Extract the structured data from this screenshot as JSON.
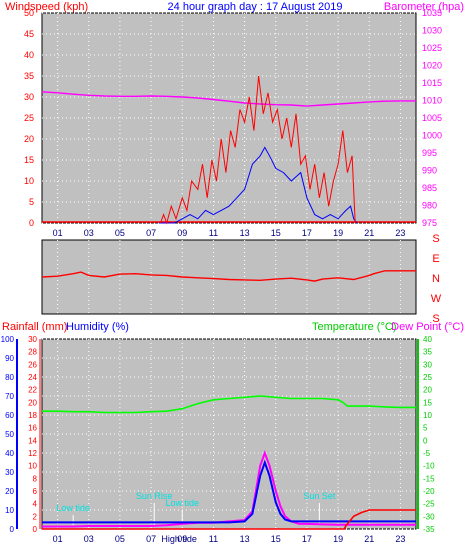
{
  "header": {
    "title": "24 hour graph day : 17 August 2019",
    "left_label": "Windspeed (kph)",
    "right_label": "Barometer (hpa)"
  },
  "colors": {
    "background_plot": "#c0c0c0",
    "wind": "#ff0000",
    "gust": "#0000ff",
    "barometer": "#ff00ff",
    "temperature": "#00ff00",
    "dewpoint": "#ff00ff",
    "humidity": "#0000ff",
    "rainfall": "#ff0000",
    "title": "#0000ff"
  },
  "chart_data": [
    {
      "type": "line",
      "name": "wind-barometer",
      "x_ticks": [
        "01",
        "03",
        "05",
        "07",
        "09",
        "11",
        "13",
        "15",
        "17",
        "19",
        "21",
        "23"
      ],
      "x_range": [
        0,
        24
      ],
      "y_left_range": [
        0,
        50
      ],
      "y_left_ticks": [
        "0",
        "5",
        "10",
        "15",
        "20",
        "25",
        "30",
        "35",
        "40",
        "45",
        "50"
      ],
      "y_right_range": [
        975,
        1035
      ],
      "y_right_ticks": [
        "975",
        "980",
        "985",
        "990",
        "995",
        "1000",
        "1005",
        "1010",
        "1015",
        "1020",
        "1025",
        "1030",
        "1035"
      ],
      "series": [
        {
          "key": "barometer",
          "x": [
            0,
            1,
            2,
            3,
            4,
            5,
            6,
            7,
            8,
            9,
            10,
            11,
            12,
            13,
            14,
            15,
            16,
            17,
            18,
            19,
            20,
            21,
            22,
            23,
            24
          ],
          "y": [
            1012.5,
            1012.2,
            1011.8,
            1011.5,
            1011.3,
            1011.2,
            1011.2,
            1011.3,
            1011.2,
            1011.0,
            1010.7,
            1010.3,
            1009.8,
            1009.3,
            1009.0,
            1008.8,
            1008.7,
            1008.4,
            1008.7,
            1009.0,
            1009.3,
            1009.6,
            1009.8,
            1009.9,
            1009.9
          ]
        },
        {
          "key": "gust",
          "x": [
            7.5,
            8.5,
            9.0,
            9.5,
            10.0,
            10.5,
            11.0,
            11.5,
            12.0,
            12.5,
            13.0,
            13.5,
            14.0,
            14.3,
            14.6,
            15.0,
            15.5,
            16.0,
            16.3,
            16.6,
            17.0,
            17.5,
            18.0,
            18.5,
            19.0,
            19.5,
            19.8,
            20.0,
            20.2
          ],
          "y": [
            0,
            0,
            1,
            2,
            1,
            3,
            2,
            3,
            4,
            6,
            8,
            14,
            16,
            18,
            16,
            13,
            12,
            10,
            11,
            12,
            6,
            2,
            1,
            2,
            1,
            3,
            4,
            1,
            0
          ]
        },
        {
          "key": "wind",
          "x": [
            7.6,
            7.8,
            8.0,
            8.3,
            8.6,
            9.0,
            9.3,
            9.6,
            10.0,
            10.3,
            10.6,
            10.9,
            11.2,
            11.5,
            11.8,
            12.1,
            12.4,
            12.7,
            13.0,
            13.3,
            13.6,
            13.9,
            14.2,
            14.5,
            14.8,
            15.1,
            15.4,
            15.7,
            16.0,
            16.3,
            16.6,
            16.9,
            17.2,
            17.5,
            17.8,
            18.1,
            18.4,
            18.7,
            19.0,
            19.3,
            19.6,
            19.9,
            20.1
          ],
          "y": [
            0,
            2,
            0,
            4,
            1,
            6,
            3,
            10,
            8,
            14,
            6,
            15,
            10,
            20,
            12,
            22,
            18,
            27,
            24,
            30,
            22,
            35,
            26,
            31,
            24,
            27,
            20,
            25,
            18,
            26,
            14,
            16,
            8,
            14,
            6,
            12,
            4,
            10,
            14,
            22,
            12,
            16,
            0
          ]
        }
      ]
    },
    {
      "type": "line",
      "name": "wind-direction",
      "y_labels": [
        "S",
        "E",
        "N",
        "W",
        "S"
      ],
      "series": [
        {
          "key": "direction",
          "x": [
            0,
            1,
            2,
            2.5,
            3,
            4,
            5,
            6,
            7,
            8,
            9,
            10,
            11,
            12,
            13,
            14,
            15,
            16,
            17,
            17.5,
            18,
            19,
            20,
            21,
            21.3,
            22,
            23,
            24
          ],
          "y": [
            270,
            268,
            262,
            258,
            266,
            270,
            263,
            262,
            265,
            266,
            270,
            272,
            274,
            276,
            277,
            278,
            275,
            273,
            277,
            280,
            275,
            272,
            276,
            266,
            262,
            255,
            255,
            255
          ]
        }
      ]
    },
    {
      "type": "line",
      "name": "temperature-humidity-rain",
      "labels": {
        "rainfall": "Rainfall (mm)",
        "humidity": "Humidity (%)",
        "temperature": "Temperature (°C)",
        "dewpoint": "Dew Point (°C)"
      },
      "x_ticks": [
        "01",
        "03",
        "05",
        "07",
        "09",
        "11",
        "13",
        "15",
        "17",
        "19",
        "21",
        "23"
      ],
      "rain_range": [
        0,
        30
      ],
      "rain_ticks": [
        "0",
        "2",
        "4",
        "6",
        "8",
        "10",
        "12",
        "14",
        "16",
        "18",
        "20",
        "22",
        "24",
        "26",
        "28",
        "30"
      ],
      "humidity_range": [
        0,
        100
      ],
      "humidity_ticks": [
        "0",
        "10",
        "20",
        "30",
        "40",
        "50",
        "60",
        "70",
        "80",
        "90",
        "100"
      ],
      "temp_range": [
        -35,
        40
      ],
      "temp_ticks": [
        "-35",
        "-30",
        "-25",
        "-20",
        "-15",
        "-10",
        "-5",
        "0",
        "5",
        "10",
        "15",
        "20",
        "25",
        "30",
        "35",
        "40"
      ],
      "annotations": [
        {
          "label": "Low tide",
          "x": 2.0
        },
        {
          "label": "Sun Rise",
          "x": 7.2
        },
        {
          "label": "Sun Set",
          "x": 17.8
        },
        {
          "label": "High tide",
          "x": 8.8
        },
        {
          "label": "Low tide",
          "x": 9.0
        }
      ],
      "series": [
        {
          "key": "temperature",
          "x": [
            0,
            1,
            2,
            3,
            4,
            5,
            6,
            7,
            8,
            9,
            10,
            11,
            12,
            13,
            14,
            15,
            16,
            17,
            18,
            19,
            19.3,
            19.6,
            20,
            21,
            22,
            23,
            24
          ],
          "y": [
            11.5,
            11.5,
            11.3,
            11.3,
            11.0,
            11.0,
            11.0,
            11.3,
            11.5,
            12.5,
            14.5,
            16.0,
            16.5,
            17.0,
            17.5,
            17.0,
            16.5,
            16.5,
            16.5,
            16.0,
            15.0,
            13.5,
            13.5,
            13.5,
            13.2,
            13.0,
            13.0
          ]
        },
        {
          "key": "dewpoint",
          "x": [
            0,
            1,
            2,
            3,
            4,
            5,
            6,
            7,
            8,
            9,
            10,
            11,
            12,
            13,
            13.5,
            14.0,
            14.3,
            14.6,
            15.0,
            15.3,
            15.6,
            16.0,
            16.5,
            17,
            18,
            19,
            20,
            21,
            22,
            23,
            24
          ],
          "y": [
            -34.0,
            -34.0,
            -34.0,
            -33.8,
            -33.8,
            -33.8,
            -33.8,
            -33.8,
            -33.5,
            -33.0,
            -32.5,
            -32.5,
            -32.0,
            -31.5,
            -28.0,
            -10.0,
            -5.0,
            -10.0,
            -20.0,
            -26.0,
            -30.0,
            -32.0,
            -33.0,
            -33.0,
            -33.2,
            -33.3,
            -33.3,
            -33.3,
            -33.3,
            -33.3,
            -33.3
          ]
        },
        {
          "key": "humidity",
          "x": [
            0,
            1,
            2,
            3,
            4,
            5,
            6,
            7,
            8,
            9,
            10,
            11,
            12,
            13,
            13.5,
            14.0,
            14.3,
            14.6,
            15.0,
            15.3,
            15.6,
            16.0,
            16.5,
            17,
            18,
            19,
            20,
            21,
            22,
            23,
            24
          ],
          "y": [
            3.5,
            3.5,
            3.5,
            3.5,
            3.5,
            3.5,
            3.5,
            3.5,
            3.5,
            3.5,
            3.5,
            3.5,
            3.5,
            4.0,
            8.0,
            28.0,
            35.0,
            28.0,
            14.0,
            8.0,
            5.0,
            4.0,
            4.0,
            4.0,
            4.0,
            4.0,
            4.0,
            4.0,
            4.0,
            4.0,
            4.0
          ]
        },
        {
          "key": "rainfall",
          "x": [
            0,
            19.4,
            19.5,
            20.0,
            20.5,
            21.0,
            22.0,
            23.0,
            23.5,
            24
          ],
          "y": [
            0,
            0,
            0.5,
            2.0,
            2.6,
            3.0,
            3.0,
            3.0,
            3.0,
            3.0
          ]
        }
      ]
    }
  ]
}
